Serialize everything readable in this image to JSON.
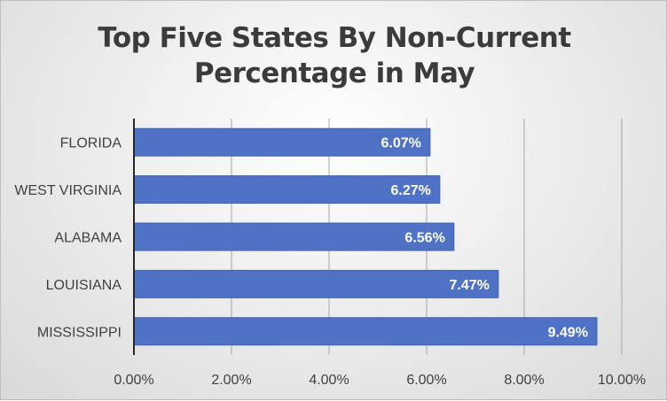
{
  "colors": {
    "bar": "#4f72c4",
    "bar_edge": "#3f62b4",
    "grid": "#a6a6a6",
    "axis": "#262626"
  },
  "chart_data": {
    "type": "bar",
    "orientation": "horizontal",
    "title_lines": [
      "Top Five States By Non-Current",
      "Percentage in May"
    ],
    "categories": [
      "FLORIDA",
      "WEST VIRGINIA",
      "ALABAMA",
      "LOUISIANA",
      "MISSISSIPPI"
    ],
    "values": [
      6.07,
      6.27,
      6.56,
      7.47,
      9.49
    ],
    "data_labels": [
      "6.07%",
      "6.27%",
      "6.56%",
      "7.47%",
      "9.49%"
    ],
    "xlim": [
      0,
      10
    ],
    "xticks": [
      0,
      2,
      4,
      6,
      8,
      10
    ],
    "xtick_labels": [
      "0.00%",
      "2.00%",
      "4.00%",
      "6.00%",
      "8.00%",
      "10.00%"
    ],
    "grid": "vertical",
    "legend": "none"
  }
}
